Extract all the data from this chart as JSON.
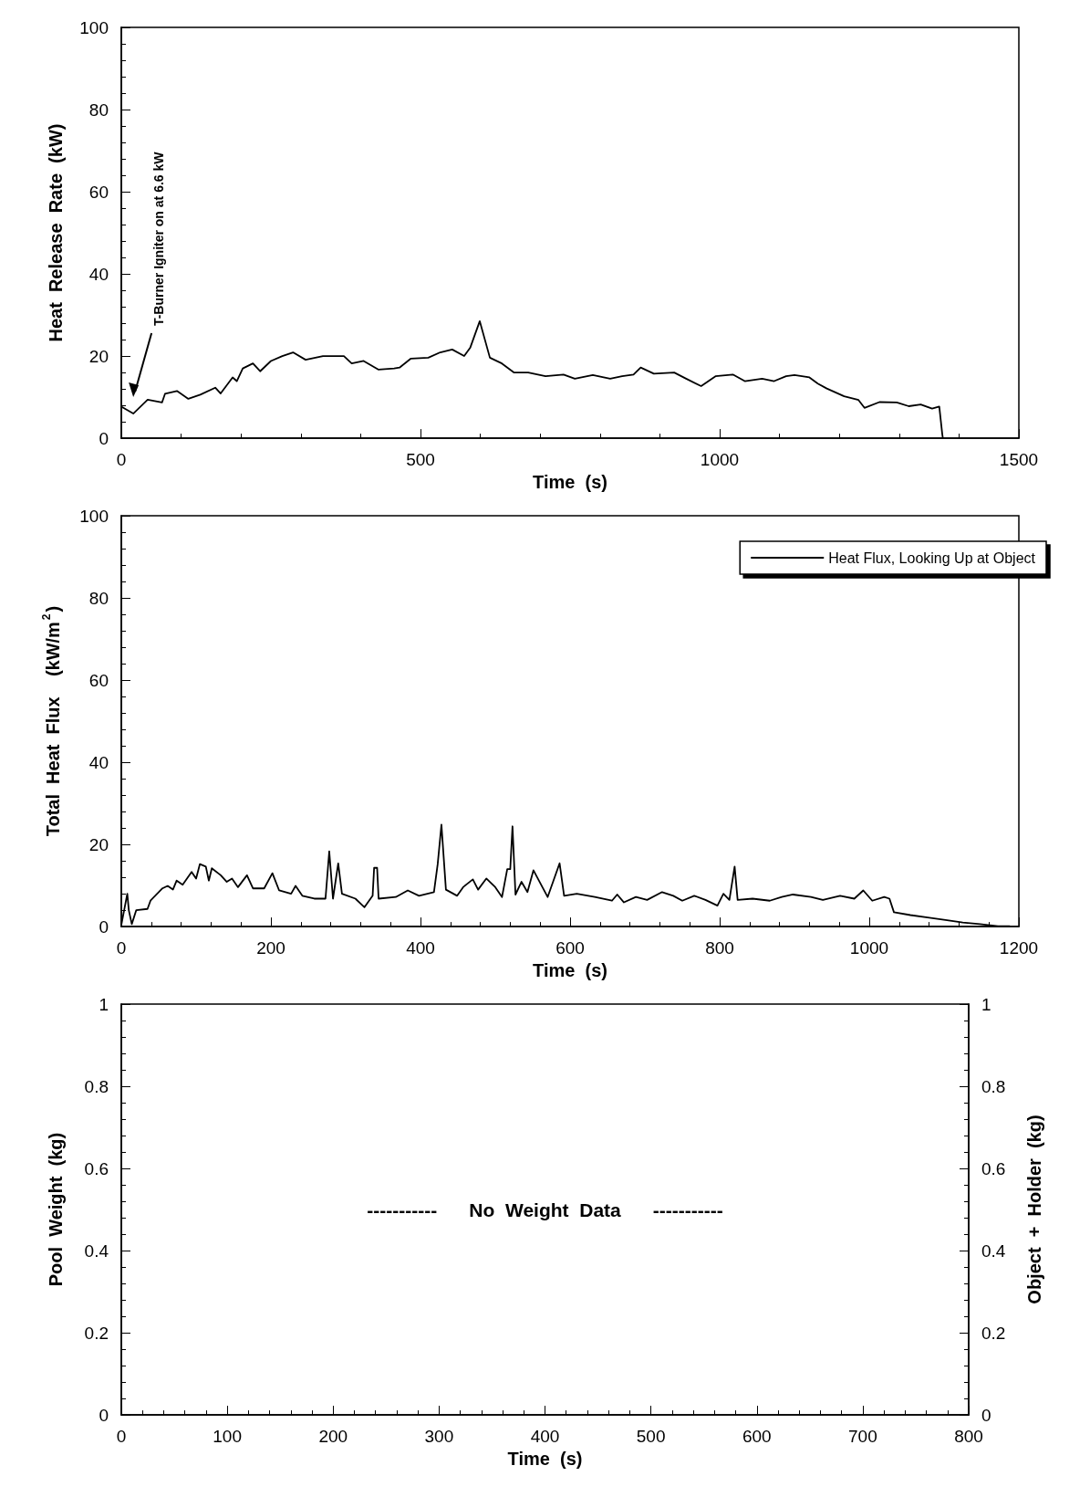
{
  "chart_data": [
    {
      "type": "line",
      "xlabel": "Time  (s)",
      "ylabel": "Heat  Release  Rate  (kW)",
      "xlim": [
        0,
        1500
      ],
      "xticks": [
        0,
        500,
        1000,
        1500
      ],
      "ylim": [
        0,
        100
      ],
      "yticks": [
        0,
        20,
        40,
        60,
        80,
        100
      ],
      "grid": false,
      "legend": false,
      "marker": "none",
      "line_style": "solid",
      "annotations": [
        "T-Burner Igniter on at 6.6 kW"
      ],
      "series": [
        {
          "color": "#000000",
          "x": [
            0,
            20,
            44,
            68,
            73,
            93,
            112,
            132,
            157,
            166,
            186,
            193,
            203,
            220,
            232,
            250,
            269,
            287,
            308,
            337,
            372,
            385,
            405,
            430,
            456,
            465,
            484,
            513,
            533,
            553,
            573,
            583,
            599,
            616,
            636,
            656,
            680,
            709,
            739,
            758,
            788,
            817,
            837,
            856,
            868,
            890,
            924,
            944,
            969,
            993,
            1022,
            1042,
            1071,
            1091,
            1111,
            1125,
            1150,
            1164,
            1179,
            1208,
            1232,
            1242,
            1267,
            1296,
            1316,
            1336,
            1355,
            1367,
            1372,
            1373
          ],
          "values": [
            7.7,
            6,
            9.4,
            8.7,
            10.8,
            11.5,
            9.6,
            10.6,
            12.3,
            10.9,
            14.8,
            13.9,
            17,
            18.2,
            16.3,
            18.8,
            20,
            20.9,
            19.1,
            20,
            20,
            18.2,
            18.8,
            16.7,
            17,
            17.2,
            19.4,
            19.6,
            20.9,
            21.6,
            20,
            22,
            28.5,
            19.6,
            18.2,
            16,
            16,
            15.1,
            15.5,
            14.5,
            15.4,
            14.5,
            15.1,
            15.5,
            17.2,
            15.7,
            16,
            14.5,
            12.7,
            15.1,
            15.5,
            13.9,
            14.5,
            13.9,
            15.1,
            15.4,
            14.8,
            13.3,
            12.1,
            10.2,
            9.3,
            7.4,
            8.8,
            8.7,
            7.8,
            8.2,
            7.2,
            7.7,
            1,
            0
          ]
        }
      ]
    },
    {
      "type": "line",
      "xlabel": "Time  (s)",
      "ylabel": "Total  Heat  Flux    (kW/m$^{2}$)",
      "xlim": [
        0,
        1200
      ],
      "xticks": [
        0,
        200,
        400,
        600,
        800,
        1000,
        1200
      ],
      "ylim": [
        0,
        100
      ],
      "yticks": [
        0,
        20,
        40,
        60,
        80,
        100
      ],
      "grid": false,
      "legend": "top right",
      "marker": "none",
      "line_style": "solid",
      "series": [
        {
          "name": "Heat Flux, Looking Up at Object",
          "color": "#000000",
          "x": [
            0,
            8,
            10,
            14,
            20,
            35,
            39,
            55,
            62,
            69,
            74,
            82,
            94,
            100,
            105,
            113,
            117,
            121,
            133,
            141,
            148,
            156,
            168,
            176,
            191,
            202,
            211,
            227,
            233,
            242,
            258,
            273,
            278,
            283,
            290,
            295,
            313,
            325,
            336,
            338,
            342,
            344,
            367,
            383,
            398,
            418,
            423,
            428,
            434,
            449,
            457,
            470,
            477,
            488,
            500,
            509,
            516,
            520,
            523,
            527,
            535,
            543,
            551,
            563,
            570,
            586,
            592,
            609,
            633,
            656,
            663,
            672,
            688,
            703,
            723,
            738,
            750,
            766,
            781,
            797,
            805,
            813,
            820,
            824,
            844,
            867,
            883,
            898,
            922,
            938,
            961,
            980,
            992,
            1004,
            1020,
            1027,
            1033,
            1055,
            1078,
            1102,
            1125,
            1148,
            1172,
            1188
          ],
          "values": [
            0.4,
            8,
            4,
            0.6,
            4,
            4.3,
            6.3,
            9.3,
            9.9,
            9,
            11.2,
            10.2,
            13.3,
            11.7,
            15.2,
            14.6,
            11.2,
            14.2,
            12.5,
            10.9,
            11.7,
            9.6,
            12.5,
            9.3,
            9.3,
            13,
            8.8,
            8,
            9.9,
            7.5,
            6.8,
            6.8,
            18.3,
            6.8,
            15.4,
            8,
            6.8,
            4.7,
            7.5,
            14.3,
            14.3,
            6.8,
            7.2,
            8.8,
            7.5,
            8.4,
            15.2,
            24.8,
            9,
            7.5,
            9.6,
            11.5,
            9,
            11.7,
            9.6,
            7.2,
            14,
            14,
            24.4,
            7.8,
            10.9,
            8.4,
            13.7,
            9.6,
            7.2,
            15.4,
            7.5,
            8,
            7.2,
            6.3,
            7.8,
            5.9,
            7.2,
            6.5,
            8.4,
            7.5,
            6.3,
            7.5,
            6.5,
            5.1,
            8,
            6.5,
            14.6,
            6.5,
            6.8,
            6.3,
            7.2,
            7.8,
            7.2,
            6.5,
            7.5,
            6.8,
            8.8,
            6.3,
            7.2,
            6.8,
            3.5,
            2.8,
            2.2,
            1.6,
            1,
            0.6,
            0.1,
            0.1
          ]
        }
      ]
    },
    {
      "type": "line",
      "xlabel": "Time  (s)",
      "ylabel": "Pool  Weight  (kg)",
      "y2label": "Object  +  Holder  (kg)",
      "xlim": [
        0,
        800
      ],
      "xticks": [
        0,
        100,
        200,
        300,
        400,
        500,
        600,
        700,
        800
      ],
      "ylim": [
        0,
        1
      ],
      "yticks": [
        0,
        0.2,
        0.4,
        0.6,
        0.8,
        1
      ],
      "y2lim": [
        0,
        1
      ],
      "y2ticks": [
        0,
        0.2,
        0.4,
        0.6,
        0.8,
        1
      ],
      "grid": false,
      "legend": false,
      "annotations": [
        "-----------      No  Weight  Data      -----------"
      ]
    }
  ]
}
